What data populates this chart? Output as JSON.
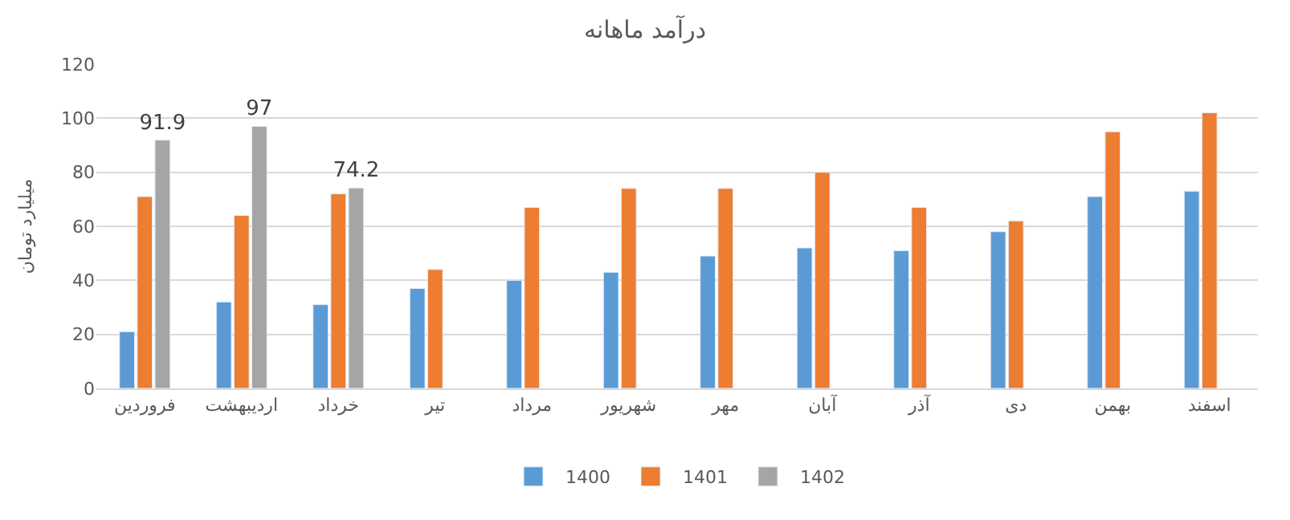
{
  "chart_data": {
    "type": "bar",
    "title": "درآمد ماهانه",
    "ylabel": "میلیارد تومان",
    "categories": [
      "فروردین",
      "اردیبهشت",
      "خرداد",
      "تیر",
      "مرداد",
      "شهریور",
      "مهر",
      "آبان",
      "آذر",
      "دی",
      "بهمن",
      "اسفند"
    ],
    "series": [
      {
        "name": "1400",
        "color": "#5b9bd5",
        "values": [
          21,
          32,
          31,
          37,
          40,
          43,
          49,
          52,
          51,
          58,
          71,
          73
        ]
      },
      {
        "name": "1401",
        "color": "#ed7d31",
        "values": [
          71,
          64,
          72,
          44,
          67,
          74,
          74,
          80,
          67,
          62,
          95,
          102
        ]
      },
      {
        "name": "1402",
        "color": "#a5a5a5",
        "values": [
          91.9,
          97,
          74.2,
          null,
          null,
          null,
          null,
          null,
          null,
          null,
          null,
          null
        ],
        "value_labels": [
          "91.9",
          "97",
          "74.2",
          null,
          null,
          null,
          null,
          null,
          null,
          null,
          null,
          null
        ]
      }
    ],
    "ylim": [
      0,
      120
    ],
    "yticks": [
      0,
      20,
      40,
      60,
      80,
      100,
      120
    ],
    "grid": "y",
    "legend": "bottom"
  }
}
